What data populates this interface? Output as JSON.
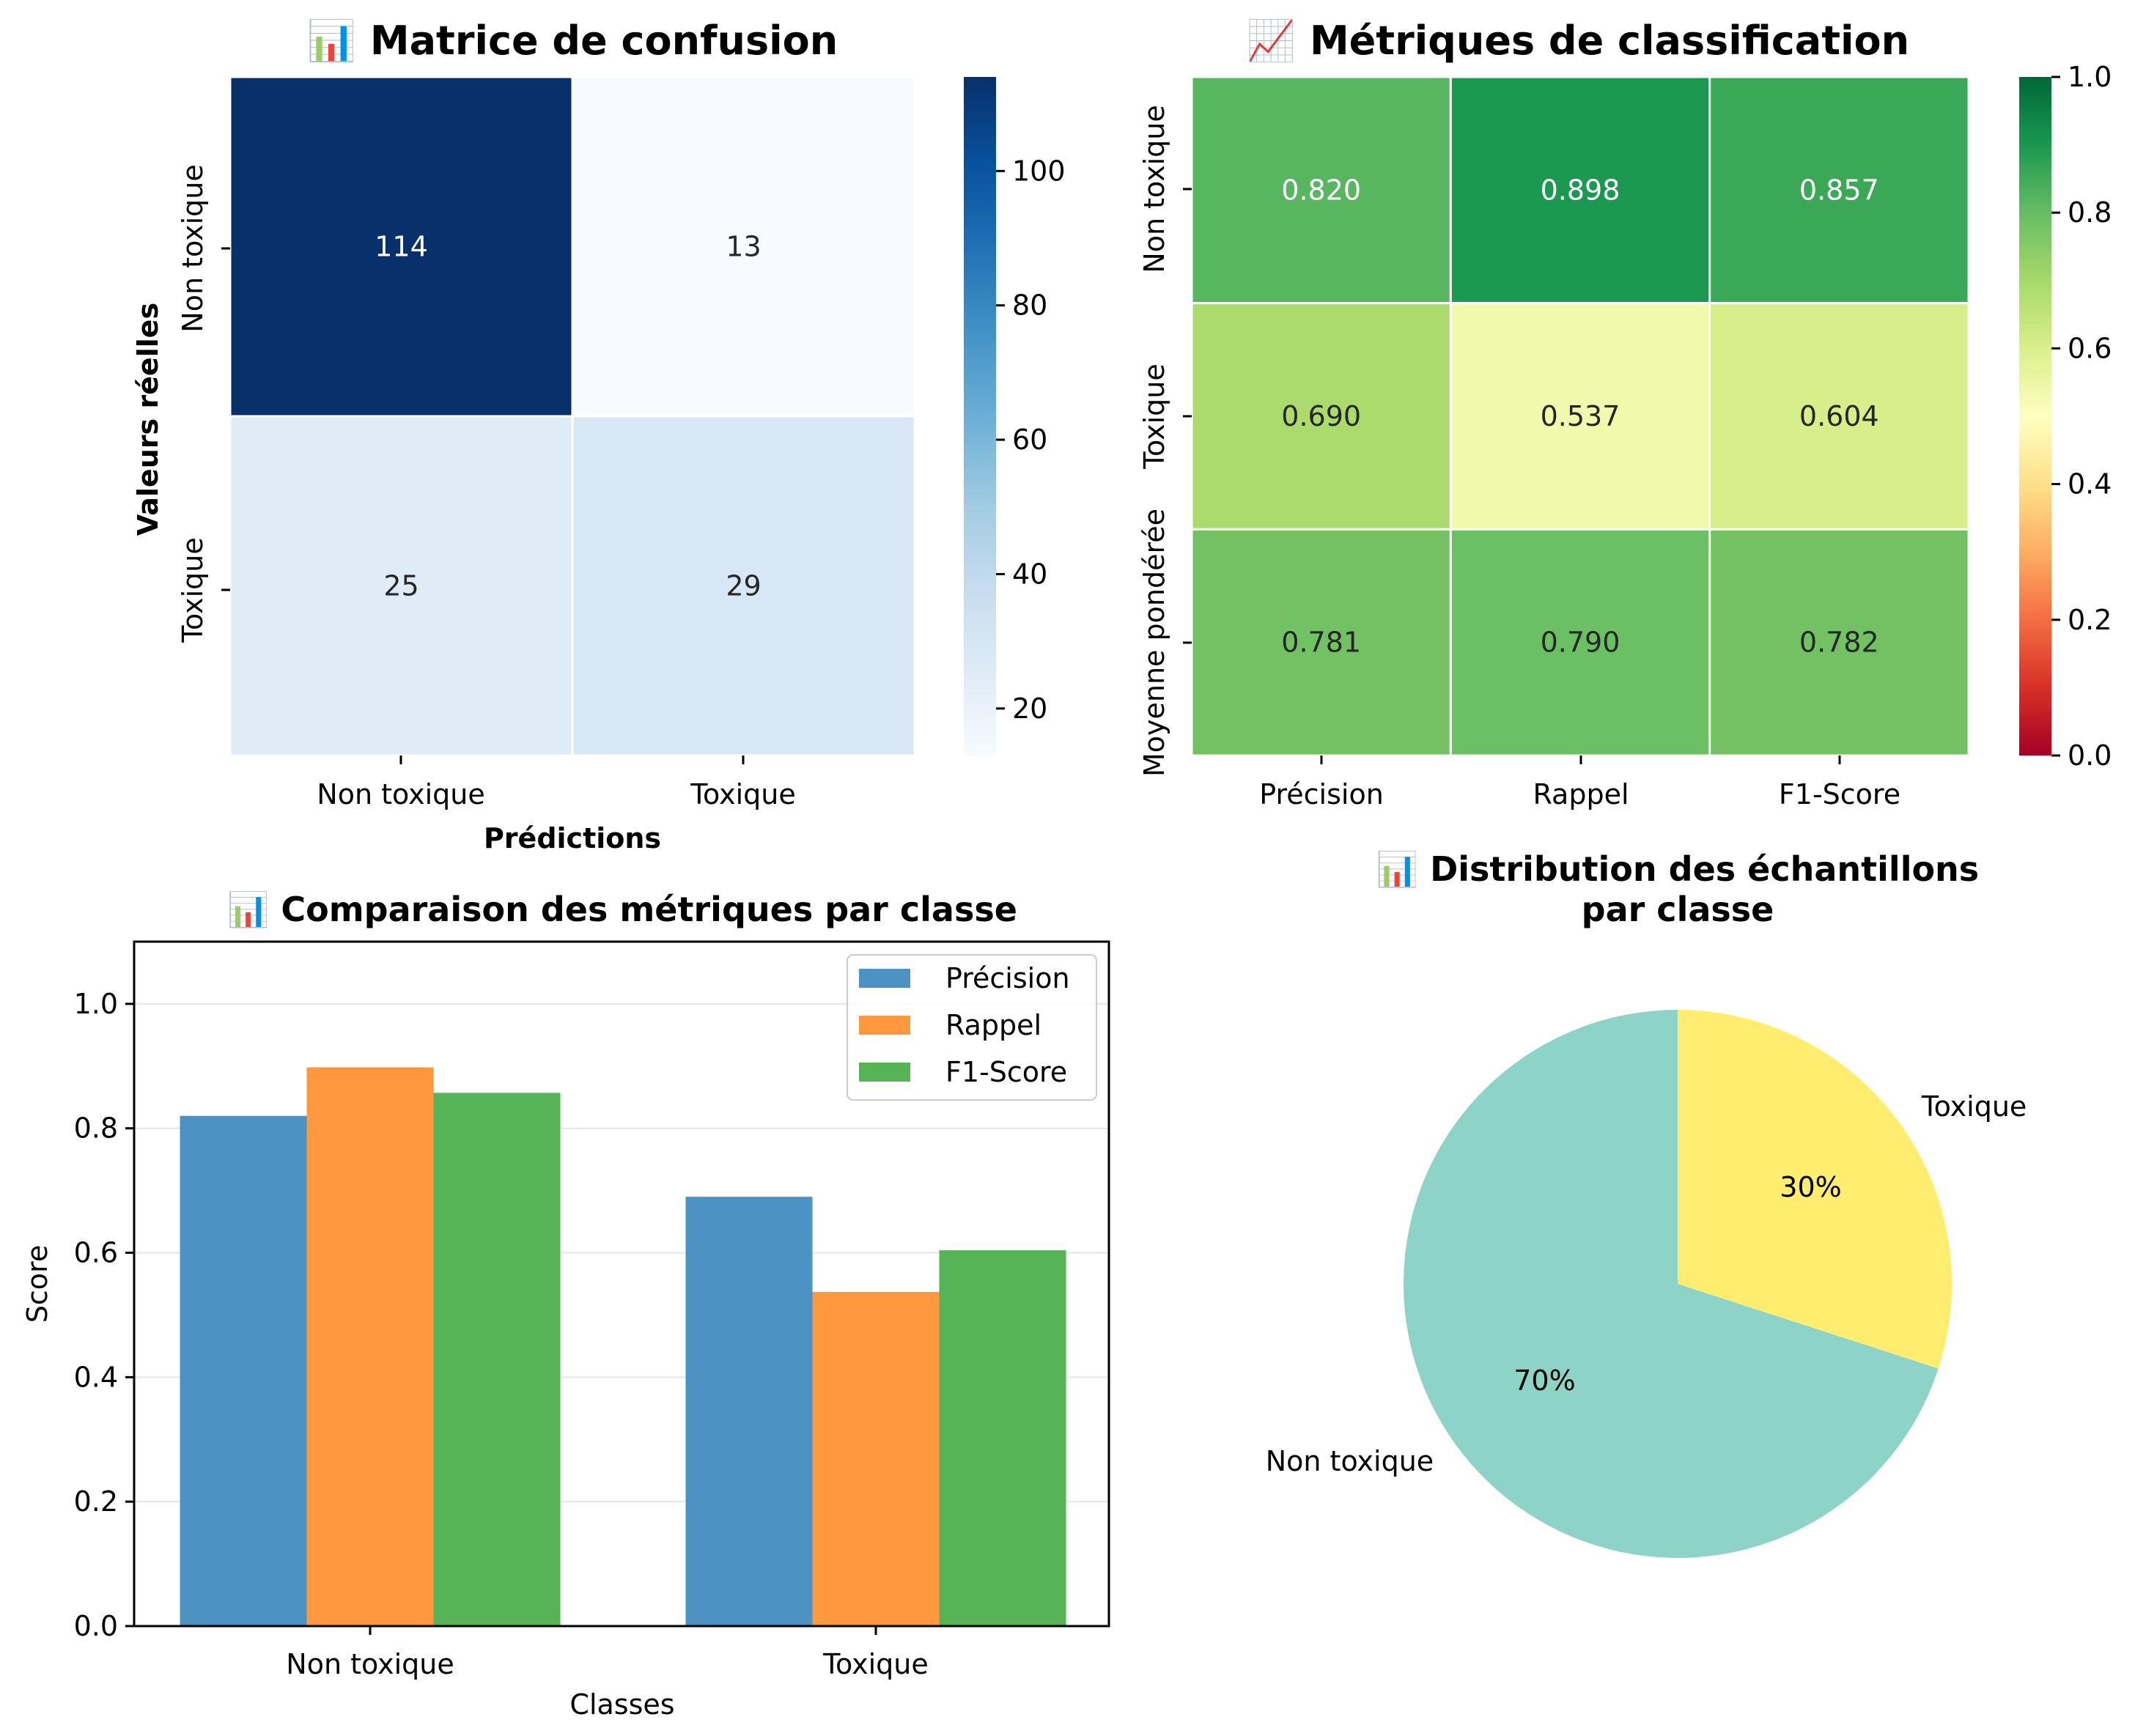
{
  "colors": {
    "blues_low": "#f7fbff",
    "blues_high": "#08306b",
    "precision": "#4c92c3",
    "recall": "#ff983e",
    "f1": "#56b356",
    "pie_nontoxic": "#8dd3c7",
    "pie_toxic": "#ffed6f",
    "grid": "#e5e5e5"
  },
  "chart_data": [
    {
      "type": "heatmap",
      "title": "📊 Matrice de confusion",
      "xlabel": "Prédictions",
      "ylabel": "Valeurs réelles",
      "x_categories": [
        "Non toxique",
        "Toxique"
      ],
      "y_categories": [
        "Non toxique",
        "Toxique"
      ],
      "values": [
        [
          114,
          13
        ],
        [
          25,
          29
        ]
      ],
      "colormap": "Blues",
      "colorbar_ticks": [
        "20",
        "40",
        "60",
        "80",
        "100"
      ],
      "colorbar_range": [
        13,
        114
      ]
    },
    {
      "type": "heatmap",
      "title": "📈 Métriques de classification",
      "x_categories": [
        "Précision",
        "Rappel",
        "F1-Score"
      ],
      "y_categories": [
        "Non toxique",
        "Toxique",
        "Moyenne pondérée"
      ],
      "values": [
        [
          0.82,
          0.898,
          0.857
        ],
        [
          0.69,
          0.537,
          0.604
        ],
        [
          0.781,
          0.79,
          0.782
        ]
      ],
      "labels": [
        [
          "0.820",
          "0.898",
          "0.857"
        ],
        [
          "0.690",
          "0.537",
          "0.604"
        ],
        [
          "0.781",
          "0.790",
          "0.782"
        ]
      ],
      "colormap": "RdYlGn",
      "colorbar_ticks": [
        "0.0",
        "0.2",
        "0.4",
        "0.6",
        "0.8",
        "1.0"
      ],
      "colorbar_range": [
        0,
        1
      ]
    },
    {
      "type": "bar",
      "title": "📊 Comparaison des métriques par classe",
      "xlabel": "Classes",
      "ylabel": "Score",
      "categories": [
        "Non toxique",
        "Toxique"
      ],
      "series": [
        {
          "name": "Précision",
          "values": [
            0.82,
            0.69
          ]
        },
        {
          "name": "Rappel",
          "values": [
            0.898,
            0.537
          ]
        },
        {
          "name": "F1-Score",
          "values": [
            0.857,
            0.604
          ]
        }
      ],
      "ylim": [
        0,
        1.1
      ],
      "yticks": [
        "0.0",
        "0.2",
        "0.4",
        "0.6",
        "0.8",
        "1.0"
      ],
      "grid": "y",
      "legend": "top-right"
    },
    {
      "type": "pie",
      "title_line1": "📊 Distribution des échantillons",
      "title_line2": "par classe",
      "slices": [
        {
          "label": "Non toxique",
          "value": 70,
          "pct_label": "70%"
        },
        {
          "label": "Toxique",
          "value": 30,
          "pct_label": "30%"
        }
      ]
    }
  ]
}
